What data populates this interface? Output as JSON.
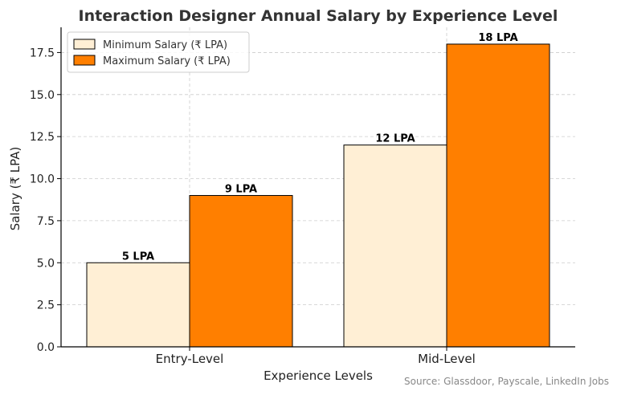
{
  "chart_data": {
    "type": "bar",
    "title": "Interaction Designer Annual Salary by Experience Level",
    "xlabel": "Experience Levels",
    "ylabel": "Salary (₹ LPA)",
    "categories": [
      "Entry-Level",
      "Mid-Level"
    ],
    "series": [
      {
        "name": "Minimum Salary (₹ LPA)",
        "values": [
          5,
          12
        ],
        "labels": [
          "5 LPA",
          "12 LPA"
        ],
        "color": "#FFEFD5"
      },
      {
        "name": "Maximum Salary (₹ LPA)",
        "values": [
          9,
          18
        ],
        "labels": [
          "9 LPA",
          "18 LPA"
        ],
        "color": "#FF7F00"
      }
    ],
    "ylim": [
      0,
      19
    ],
    "yticks": [
      0,
      2.5,
      5,
      7.5,
      10,
      12.5,
      15,
      17.5
    ],
    "ytick_labels": [
      "0.0",
      "2.5",
      "5.0",
      "7.5",
      "10.0",
      "12.5",
      "15.0",
      "17.5"
    ],
    "grid": true,
    "legend_position": "top-left",
    "source": "Source: Glassdoor, Payscale, LinkedIn Jobs"
  }
}
